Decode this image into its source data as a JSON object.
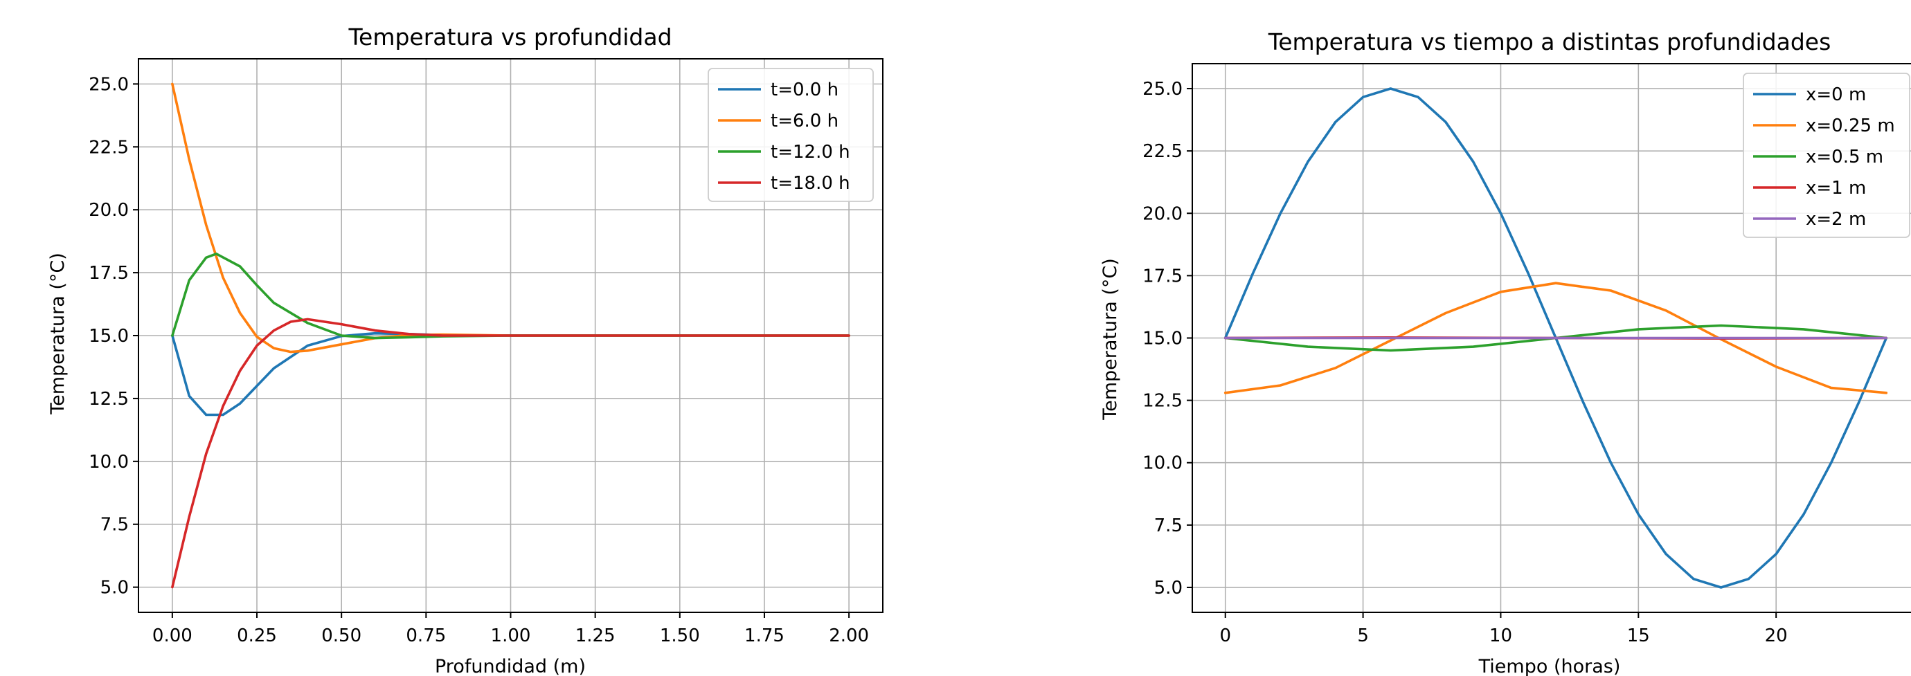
{
  "chart_data": [
    {
      "type": "line",
      "title": "Temperatura vs profundidad",
      "xlabel": "Profundidad (m)",
      "ylabel": "Temperatura (°C)",
      "xlim": [
        -0.1,
        2.1
      ],
      "ylim": [
        4.0,
        26.0
      ],
      "xticks": [
        "0.00",
        "0.25",
        "0.50",
        "0.75",
        "1.00",
        "1.25",
        "1.50",
        "1.75",
        "2.00"
      ],
      "yticks": [
        "5.0",
        "7.5",
        "10.0",
        "12.5",
        "15.0",
        "17.5",
        "20.0",
        "22.5",
        "25.0"
      ],
      "grid": true,
      "legend_position": "upper right",
      "series": [
        {
          "name": "t=0.0 h",
          "color": "#1f77b4",
          "x": [
            0.0,
            0.05,
            0.1,
            0.15,
            0.2,
            0.25,
            0.3,
            0.4,
            0.5,
            0.6,
            0.7,
            0.8,
            1.0,
            1.5,
            2.0
          ],
          "y": [
            15.0,
            12.6,
            11.85,
            11.85,
            12.3,
            13.0,
            13.7,
            14.6,
            14.98,
            15.09,
            15.06,
            15.02,
            15.0,
            15.0,
            15.0
          ]
        },
        {
          "name": "t=6.0 h",
          "color": "#ff7f0e",
          "x": [
            0.0,
            0.05,
            0.1,
            0.15,
            0.2,
            0.25,
            0.3,
            0.35,
            0.4,
            0.5,
            0.6,
            0.7,
            0.8,
            1.0,
            1.5,
            2.0
          ],
          "y": [
            25.0,
            22.0,
            19.4,
            17.3,
            15.9,
            14.95,
            14.5,
            14.35,
            14.4,
            14.65,
            14.9,
            15.02,
            15.04,
            15.0,
            15.0,
            15.0
          ]
        },
        {
          "name": "t=12.0 h",
          "color": "#2ca02c",
          "x": [
            0.0,
            0.05,
            0.1,
            0.13,
            0.2,
            0.25,
            0.3,
            0.4,
            0.5,
            0.6,
            0.7,
            0.8,
            1.0,
            1.5,
            2.0
          ],
          "y": [
            15.0,
            17.2,
            18.1,
            18.25,
            17.75,
            17.0,
            16.3,
            15.5,
            15.0,
            14.9,
            14.93,
            14.97,
            15.0,
            15.0,
            15.0
          ]
        },
        {
          "name": "t=18.0 h",
          "color": "#d62728",
          "x": [
            0.0,
            0.05,
            0.1,
            0.15,
            0.2,
            0.25,
            0.3,
            0.35,
            0.4,
            0.5,
            0.6,
            0.7,
            0.8,
            1.0,
            1.5,
            2.0
          ],
          "y": [
            5.0,
            7.8,
            10.3,
            12.2,
            13.6,
            14.6,
            15.2,
            15.55,
            15.65,
            15.45,
            15.2,
            15.06,
            15.0,
            15.0,
            15.0,
            15.0
          ]
        }
      ]
    },
    {
      "type": "line",
      "title": "Temperatura vs tiempo a distintas profundidades",
      "xlabel": "Tiempo (horas)",
      "ylabel": "Temperatura (°C)",
      "xlim": [
        -1.2,
        25.2
      ],
      "ylim": [
        4.0,
        26.0
      ],
      "xticks": [
        "0",
        "5",
        "10",
        "15",
        "20"
      ],
      "yticks": [
        "5.0",
        "7.5",
        "10.0",
        "12.5",
        "15.0",
        "17.5",
        "20.0",
        "22.5",
        "25.0"
      ],
      "grid": true,
      "legend_position": "upper right",
      "series": [
        {
          "name": "x=0 m",
          "color": "#1f77b4",
          "x": [
            0,
            1,
            2,
            3,
            4,
            5,
            6,
            7,
            8,
            9,
            10,
            11,
            12,
            13,
            14,
            15,
            16,
            17,
            18,
            19,
            20,
            21,
            22,
            23,
            24
          ],
          "y": [
            15.0,
            17.59,
            20.0,
            22.07,
            23.66,
            24.66,
            25.0,
            24.66,
            23.66,
            22.07,
            20.0,
            17.59,
            15.0,
            12.41,
            10.0,
            7.93,
            6.34,
            5.34,
            5.0,
            5.34,
            6.34,
            7.93,
            10.0,
            12.41,
            15.0
          ]
        },
        {
          "name": "x=0.25 m",
          "color": "#ff7f0e",
          "x": [
            0,
            2,
            4,
            6,
            8,
            10,
            12,
            14,
            16,
            18,
            20,
            22,
            24
          ],
          "y": [
            12.8,
            13.1,
            13.8,
            14.9,
            16.0,
            16.85,
            17.2,
            16.9,
            16.1,
            14.95,
            13.85,
            13.0,
            12.8
          ]
        },
        {
          "name": "x=0.5 m",
          "color": "#2ca02c",
          "x": [
            0,
            3,
            6,
            9,
            12,
            15,
            18,
            21,
            24
          ],
          "y": [
            15.0,
            14.65,
            14.5,
            14.65,
            15.0,
            15.35,
            15.5,
            15.35,
            15.0
          ]
        },
        {
          "name": "x=1 m",
          "color": "#d62728",
          "x": [
            0,
            6,
            12,
            18,
            24
          ],
          "y": [
            15.0,
            15.02,
            15.0,
            14.98,
            15.0
          ]
        },
        {
          "name": "x=2 m",
          "color": "#9467bd",
          "x": [
            0,
            6,
            12,
            18,
            24
          ],
          "y": [
            15.0,
            15.0,
            15.0,
            15.0,
            15.0
          ]
        }
      ]
    }
  ]
}
